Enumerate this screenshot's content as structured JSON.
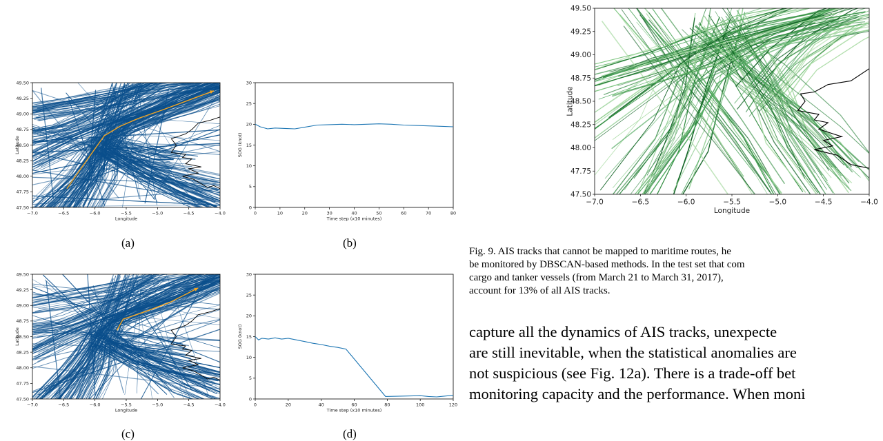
{
  "subfigure_labels": [
    "(a)",
    "(b)",
    "(c)",
    "(d)"
  ],
  "caption": {
    "lines": [
      "Fig. 9.  AIS tracks that cannot be mapped to maritime routes, he",
      "be monitored by DBSCAN-based methods. In the test set that com",
      "cargo and tanker vessels (from March 21 to March 31, 2017), ",
      "account for 13% of all AIS tracks."
    ]
  },
  "body_text": {
    "lines": [
      "capture all the dynamics of AIS tracks, unexpecte",
      "are still inevitable, when the statistical anomalies are",
      "not suspicious (see Fig. 12a). There is a trade-off bet",
      "monitoring capacity and the performance. When moni"
    ]
  },
  "chart_data": [
    {
      "id": "a",
      "type": "line",
      "title": "",
      "xlabel": "Longitude",
      "ylabel": "Latitude",
      "xlim": [
        -7.0,
        -4.0
      ],
      "ylim": [
        47.5,
        49.5
      ],
      "xticks": [
        "−7.0",
        "−6.5",
        "−6.0",
        "−5.5",
        "−5.0",
        "−4.5",
        "−4.0"
      ],
      "yticks": [
        "47.50",
        "47.75",
        "48.00",
        "48.25",
        "48.50",
        "48.75",
        "49.00",
        "49.25",
        "49.50"
      ],
      "track_color": "#0b4f8c",
      "highlight_color": "#f5a623",
      "highlight_track": {
        "lon": [
          -6.45,
          -6.1,
          -5.85,
          -5.6,
          -5.3,
          -4.9,
          -4.5,
          -4.1
        ],
        "lat": [
          47.8,
          48.3,
          48.65,
          48.8,
          48.93,
          49.07,
          49.22,
          49.37
        ]
      }
    },
    {
      "id": "b",
      "type": "line",
      "title": "",
      "xlabel": "Time step (x10 minutes)",
      "ylabel": "SOG (knot)",
      "xlim": [
        0,
        80
      ],
      "ylim": [
        0,
        30
      ],
      "xticks": [
        0,
        10,
        20,
        30,
        40,
        50,
        60,
        70,
        80
      ],
      "yticks": [
        0,
        5,
        10,
        15,
        20,
        25,
        30
      ],
      "series_color": "#1f77b4",
      "series": [
        {
          "x": [
            0,
            2,
            5,
            8,
            12,
            16,
            20,
            25,
            30,
            35,
            40,
            45,
            50,
            55,
            60,
            65,
            70,
            75,
            80
          ],
          "y": [
            20.0,
            19.4,
            18.9,
            19.1,
            19.0,
            18.9,
            19.3,
            19.8,
            19.9,
            20.0,
            19.9,
            20.0,
            20.1,
            20.0,
            19.8,
            19.7,
            19.6,
            19.5,
            19.4
          ]
        }
      ]
    },
    {
      "id": "c",
      "type": "line",
      "title": "",
      "xlabel": "Longitude",
      "ylabel": "Latitude",
      "xlim": [
        -7.0,
        -4.0
      ],
      "ylim": [
        47.5,
        49.5
      ],
      "xticks": [
        "−7.0",
        "−6.5",
        "−6.0",
        "−5.5",
        "−5.0",
        "−4.5",
        "−4.0"
      ],
      "yticks": [
        "47.50",
        "47.75",
        "48.00",
        "48.25",
        "48.50",
        "48.75",
        "49.00",
        "49.25",
        "49.50"
      ],
      "track_color": "#0b4f8c",
      "highlight_color": "#f5a623",
      "highlight_track": {
        "lon": [
          -5.65,
          -5.55,
          -5.2,
          -4.8,
          -4.35
        ],
        "lat": [
          48.6,
          48.78,
          48.9,
          49.05,
          49.28
        ]
      }
    },
    {
      "id": "d",
      "type": "line",
      "title": "",
      "xlabel": "Time step (x10 minutes)",
      "ylabel": "SOG (knot)",
      "xlim": [
        0,
        120
      ],
      "ylim": [
        0,
        30
      ],
      "xticks": [
        0,
        20,
        40,
        60,
        80,
        100,
        120
      ],
      "yticks": [
        0,
        5,
        10,
        15,
        20,
        25,
        30
      ],
      "series_color": "#1f77b4",
      "series": [
        {
          "x": [
            0,
            2,
            4,
            8,
            12,
            16,
            20,
            25,
            30,
            35,
            40,
            45,
            50,
            55,
            79,
            90,
            100,
            105,
            110,
            115,
            120
          ],
          "y": [
            15.0,
            14.2,
            14.6,
            14.4,
            14.7,
            14.4,
            14.6,
            14.2,
            13.8,
            13.4,
            13.1,
            12.7,
            12.4,
            12.0,
            0.6,
            0.7,
            0.8,
            0.6,
            0.5,
            0.7,
            0.9
          ]
        }
      ]
    },
    {
      "id": "fig9",
      "type": "line",
      "title": "",
      "xlabel": "Longitude",
      "ylabel": "Latitude",
      "xlim": [
        -7.0,
        -4.0
      ],
      "ylim": [
        47.5,
        49.5
      ],
      "xticks": [
        "−7.0",
        "−6.5",
        "−6.0",
        "−5.5",
        "−5.0",
        "−4.5",
        "−4.0"
      ],
      "yticks": [
        "47.50",
        "47.75",
        "48.00",
        "48.25",
        "48.50",
        "48.75",
        "49.00",
        "49.25",
        "49.50"
      ],
      "track_colors": [
        "#0a5d1e",
        "#1b7a2e",
        "#2e8b3d",
        "#4aa65a",
        "#7cc47f",
        "#a9dba4"
      ]
    }
  ]
}
